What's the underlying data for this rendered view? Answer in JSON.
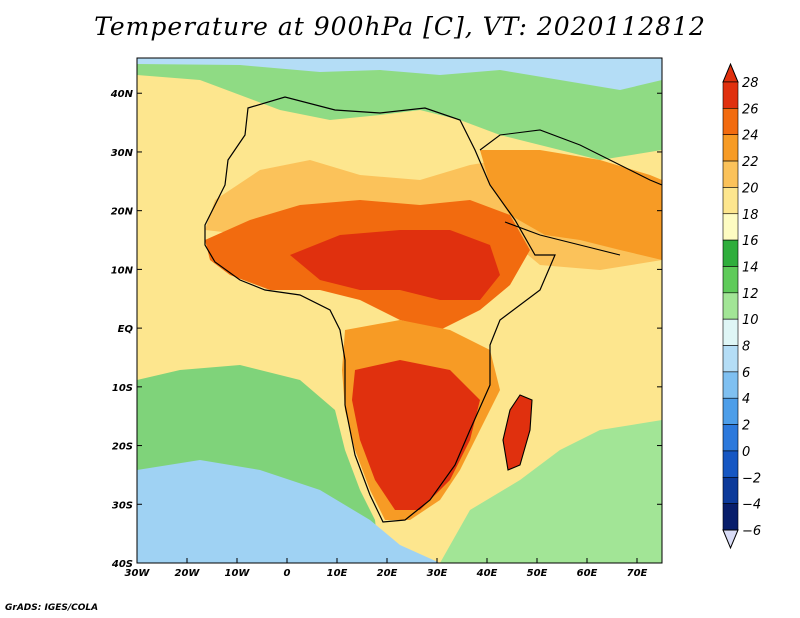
{
  "title": "Temperature at 900hPa [C], VT: 2020112812",
  "credit": "GrADS: IGES/COLA",
  "map": {
    "region": "Africa",
    "lon_range": [
      -30,
      75
    ],
    "lat_range": [
      -40,
      46
    ],
    "variable": "Temperature at 900hPa",
    "units": "C",
    "valid_time": "2020112812"
  },
  "lat_ticks": [
    {
      "value": 40,
      "label": "40N"
    },
    {
      "value": 30,
      "label": "30N"
    },
    {
      "value": 20,
      "label": "20N"
    },
    {
      "value": 10,
      "label": "10N"
    },
    {
      "value": 0,
      "label": "EQ"
    },
    {
      "value": -10,
      "label": "10S"
    },
    {
      "value": -20,
      "label": "20S"
    },
    {
      "value": -30,
      "label": "30S"
    },
    {
      "value": -40,
      "label": "40S"
    }
  ],
  "lon_ticks": [
    {
      "value": -30,
      "label": "30W"
    },
    {
      "value": -20,
      "label": "20W"
    },
    {
      "value": -10,
      "label": "10W"
    },
    {
      "value": 0,
      "label": "0"
    },
    {
      "value": 10,
      "label": "10E"
    },
    {
      "value": 20,
      "label": "20E"
    },
    {
      "value": 30,
      "label": "30E"
    },
    {
      "value": 40,
      "label": "40E"
    },
    {
      "value": 50,
      "label": "50E"
    },
    {
      "value": 60,
      "label": "60E"
    },
    {
      "value": 70,
      "label": "70E"
    }
  ],
  "colorbar": {
    "levels": [
      {
        "value": 28,
        "label": "28",
        "color": "#a50f15"
      },
      {
        "value": 26,
        "label": "26",
        "color": "#e0300e"
      },
      {
        "value": 24,
        "label": "24",
        "color": "#f26b0f"
      },
      {
        "value": 22,
        "label": "22",
        "color": "#f79b25"
      },
      {
        "value": 20,
        "label": "20",
        "color": "#fbc25a"
      },
      {
        "value": 18,
        "label": "18",
        "color": "#fde68e"
      },
      {
        "value": 16,
        "label": "16",
        "color": "#fefcc2"
      },
      {
        "value": 14,
        "label": "14",
        "color": "#2fae3c"
      },
      {
        "value": 12,
        "label": "12",
        "color": "#5fcb5a"
      },
      {
        "value": 10,
        "label": "10",
        "color": "#a2e596"
      },
      {
        "value": 8,
        "label": "8",
        "color": "#dff6f6"
      },
      {
        "value": 6,
        "label": "6",
        "color": "#b4ddf6"
      },
      {
        "value": 4,
        "label": "4",
        "color": "#7fc0f1"
      },
      {
        "value": 2,
        "label": "2",
        "color": "#4d9ee9"
      },
      {
        "value": 0,
        "label": "0",
        "color": "#2c79dc"
      },
      {
        "value": -2,
        "label": "−2",
        "color": "#1657c3"
      },
      {
        "value": -4,
        "label": "−4",
        "color": "#0c3a9a"
      },
      {
        "value": -6,
        "label": "−6",
        "color": "#081e6b"
      }
    ],
    "over_color": "#e0300e",
    "under_color": "#d9dcf6"
  },
  "regions": [
    {
      "name": "ocean-warm-equatorial",
      "color": "#fde68e"
    },
    {
      "name": "south-atlantic-cool",
      "color": "#7fd37a"
    },
    {
      "name": "sahara-warm",
      "color": "#fbc25a"
    },
    {
      "name": "sahel-hot",
      "color": "#f26b0f"
    },
    {
      "name": "central-africa-hot",
      "color": "#e0300e"
    },
    {
      "name": "southern-africa-hot",
      "color": "#e0300e"
    },
    {
      "name": "mediterranean-green",
      "color": "#5fcb5a"
    },
    {
      "name": "arabia-warm",
      "color": "#f79b25"
    },
    {
      "name": "indian-ocean-south",
      "color": "#a2e596"
    }
  ]
}
